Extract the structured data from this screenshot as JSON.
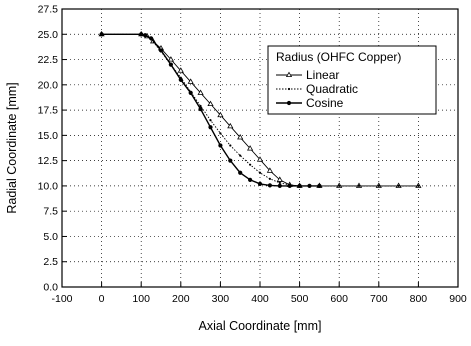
{
  "chart_data": {
    "type": "line",
    "xlabel": "Axial Coordinate [mm]",
    "ylabel": "Radial Coordinate [mm]",
    "xlim": [
      -100,
      900
    ],
    "ylim": [
      0,
      27.5
    ],
    "xticks": [
      "-100",
      "0",
      "100",
      "200",
      "300",
      "400",
      "500",
      "600",
      "700",
      "800",
      "900"
    ],
    "yticks": [
      "0.0",
      "2.5",
      "5.0",
      "7.5",
      "10.0",
      "12.5",
      "15.0",
      "17.5",
      "20.0",
      "22.5",
      "25.0",
      "27.5"
    ],
    "grid": true,
    "legend": {
      "title": "Radius (OHFC Copper)",
      "position": "top-right"
    },
    "series": [
      {
        "name": "Linear",
        "marker": "triangle",
        "color": "#000000",
        "x": [
          0,
          100,
          115,
          130,
          150,
          175,
          200,
          225,
          250,
          275,
          300,
          325,
          350,
          375,
          400,
          425,
          450,
          475,
          500,
          550,
          600,
          650,
          700,
          750,
          800
        ],
        "y": [
          25,
          25,
          24.8,
          24.3,
          23.6,
          22.5,
          21.4,
          20.3,
          19.2,
          18.1,
          17.0,
          15.9,
          14.8,
          13.7,
          12.6,
          11.5,
          10.6,
          10.1,
          10.0,
          10.0,
          10.0,
          10.0,
          10.0,
          10.0,
          10.0
        ]
      },
      {
        "name": "Quadratic",
        "marker": "dot",
        "color": "#000000",
        "x": [
          0,
          100,
          110,
          125,
          150,
          175,
          200,
          225,
          250,
          275,
          300,
          325,
          350,
          375,
          400,
          425,
          450,
          475,
          500,
          550,
          600,
          650,
          700,
          750,
          800
        ],
        "y": [
          25,
          25,
          24.9,
          24.5,
          23.3,
          22.0,
          20.7,
          19.3,
          17.9,
          16.5,
          15.2,
          14.0,
          13.0,
          12.1,
          11.3,
          10.7,
          10.3,
          10.1,
          10.0,
          10.0,
          10.0,
          10.0,
          10.0,
          10.0,
          10.0
        ]
      },
      {
        "name": "Cosine",
        "marker": "filled-circle",
        "color": "#000000",
        "x": [
          0,
          100,
          110,
          125,
          150,
          175,
          200,
          225,
          250,
          275,
          300,
          325,
          350,
          375,
          400,
          425,
          450,
          475,
          500,
          525,
          550
        ],
        "y": [
          25,
          25,
          24.9,
          24.6,
          23.4,
          22.0,
          20.5,
          19.2,
          17.6,
          15.8,
          14.0,
          12.5,
          11.3,
          10.6,
          10.2,
          10.05,
          10.0,
          10.0,
          10.0,
          10.0,
          10.0
        ]
      }
    ]
  }
}
